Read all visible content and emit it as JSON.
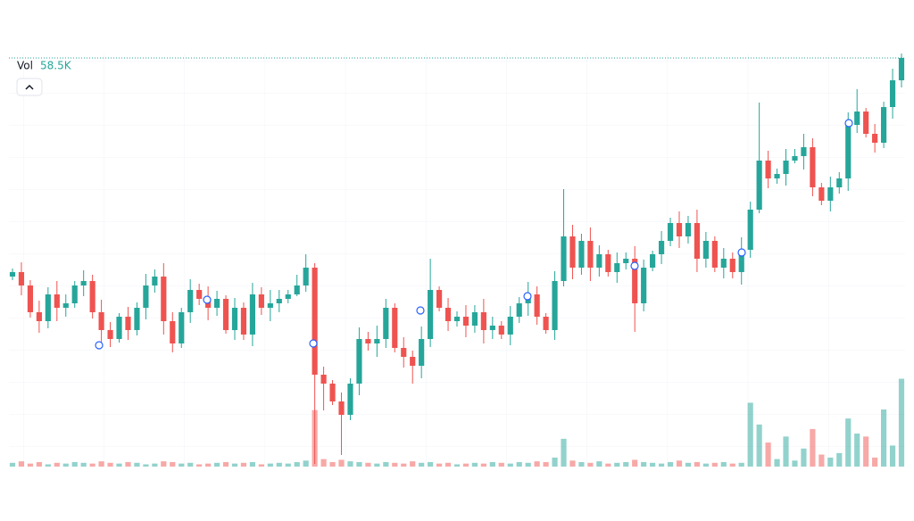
{
  "chart_data": {
    "type": "candlestick",
    "volume_label": "Vol",
    "last_volume_label": "58.5K",
    "up_color": "#26a69a",
    "down_color": "#ef5350",
    "ylim": [
      37,
      500
    ],
    "vol_ylim": [
      0,
      275000
    ],
    "grid": true,
    "candles": [
      [
        250,
        259,
        246,
        255
      ],
      [
        255,
        266,
        229,
        240
      ],
      [
        240,
        246,
        204,
        210
      ],
      [
        210,
        223,
        187,
        200
      ],
      [
        200,
        238,
        192,
        230
      ],
      [
        230,
        245,
        200,
        215
      ],
      [
        215,
        230,
        205,
        220
      ],
      [
        220,
        245,
        215,
        240
      ],
      [
        240,
        257,
        228,
        245
      ],
      [
        245,
        252,
        203,
        210
      ],
      [
        210,
        224,
        176,
        190
      ],
      [
        190,
        199,
        171,
        180
      ],
      [
        180,
        209,
        176,
        205
      ],
      [
        205,
        216,
        179,
        190
      ],
      [
        190,
        221,
        184,
        215
      ],
      [
        215,
        253,
        202,
        240
      ],
      [
        240,
        258,
        232,
        250
      ],
      [
        250,
        265,
        185,
        200
      ],
      [
        200,
        210,
        165,
        175
      ],
      [
        175,
        215,
        170,
        210
      ],
      [
        210,
        247,
        198,
        235
      ],
      [
        235,
        242,
        218,
        225
      ],
      [
        225,
        239,
        201,
        215
      ],
      [
        215,
        234,
        206,
        225
      ],
      [
        225,
        229,
        186,
        190
      ],
      [
        190,
        226,
        179,
        215
      ],
      [
        215,
        221,
        179,
        185
      ],
      [
        185,
        243,
        172,
        230
      ],
      [
        230,
        238,
        207,
        215
      ],
      [
        215,
        235,
        200,
        220
      ],
      [
        220,
        235,
        210,
        225
      ],
      [
        225,
        235,
        220,
        230
      ],
      [
        230,
        252,
        228,
        240
      ],
      [
        240,
        275,
        233,
        260
      ],
      [
        260,
        265,
        40,
        140
      ],
      [
        140,
        149,
        100,
        130
      ],
      [
        130,
        134,
        106,
        110
      ],
      [
        110,
        120,
        50,
        95
      ],
      [
        95,
        136,
        89,
        130
      ],
      [
        130,
        193,
        117,
        180
      ],
      [
        180,
        188,
        167,
        175
      ],
      [
        175,
        195,
        160,
        180
      ],
      [
        180,
        225,
        170,
        215
      ],
      [
        215,
        220,
        165,
        170
      ],
      [
        170,
        182,
        148,
        160
      ],
      [
        160,
        167,
        130,
        150
      ],
      [
        150,
        194,
        136,
        180
      ],
      [
        180,
        270,
        171,
        235
      ],
      [
        235,
        239,
        211,
        215
      ],
      [
        215,
        226,
        189,
        200
      ],
      [
        200,
        211,
        194,
        205
      ],
      [
        205,
        218,
        182,
        195
      ],
      [
        195,
        218,
        187,
        210
      ],
      [
        210,
        225,
        175,
        190
      ],
      [
        190,
        205,
        180,
        195
      ],
      [
        195,
        200,
        180,
        185
      ],
      [
        185,
        217,
        173,
        205
      ],
      [
        205,
        227,
        198,
        220
      ],
      [
        220,
        244,
        206,
        230
      ],
      [
        230,
        239,
        196,
        205
      ],
      [
        205,
        209,
        186,
        190
      ],
      [
        190,
        256,
        179,
        245
      ],
      [
        245,
        348,
        239,
        295
      ],
      [
        295,
        308,
        247,
        260
      ],
      [
        260,
        298,
        252,
        290
      ],
      [
        290,
        305,
        245,
        260
      ],
      [
        260,
        285,
        250,
        275
      ],
      [
        275,
        280,
        250,
        255
      ],
      [
        255,
        277,
        243,
        265
      ],
      [
        265,
        277,
        258,
        270
      ],
      [
        270,
        284,
        188,
        220
      ],
      [
        220,
        269,
        211,
        260
      ],
      [
        260,
        279,
        256,
        275
      ],
      [
        275,
        301,
        264,
        290
      ],
      [
        290,
        316,
        284,
        310
      ],
      [
        310,
        323,
        282,
        295
      ],
      [
        295,
        318,
        287,
        310
      ],
      [
        310,
        325,
        255,
        270
      ],
      [
        270,
        300,
        260,
        290
      ],
      [
        290,
        295,
        255,
        260
      ],
      [
        260,
        282,
        248,
        270
      ],
      [
        270,
        277,
        248,
        255
      ],
      [
        255,
        294,
        241,
        280
      ],
      [
        280,
        334,
        271,
        325
      ],
      [
        325,
        445,
        321,
        380
      ],
      [
        380,
        391,
        349,
        360
      ],
      [
        360,
        371,
        354,
        365
      ],
      [
        365,
        393,
        352,
        380
      ],
      [
        380,
        393,
        377,
        385
      ],
      [
        385,
        410,
        370,
        395
      ],
      [
        395,
        405,
        340,
        350
      ],
      [
        350,
        355,
        330,
        335
      ],
      [
        335,
        362,
        323,
        350
      ],
      [
        350,
        367,
        343,
        360
      ],
      [
        360,
        434,
        346,
        420
      ],
      [
        420,
        460,
        411,
        435
      ],
      [
        435,
        439,
        406,
        410
      ],
      [
        410,
        421,
        389,
        400
      ],
      [
        400,
        446,
        394,
        440
      ],
      [
        440,
        483,
        427,
        470
      ],
      [
        470,
        500,
        462,
        495
      ]
    ],
    "volumes": [
      2500,
      3500,
      2000,
      3000,
      1500,
      2500,
      2000,
      3000,
      2500,
      2000,
      3500,
      2500,
      2000,
      3000,
      2500,
      1500,
      2000,
      3500,
      3000,
      2000,
      2500,
      1500,
      2000,
      2500,
      3000,
      2000,
      2500,
      3000,
      1500,
      2000,
      2500,
      2000,
      3000,
      4000,
      37600,
      5000,
      3000,
      4500,
      3500,
      3000,
      2500,
      2000,
      3000,
      2500,
      2000,
      3500,
      2500,
      3000,
      2000,
      2500,
      1500,
      2000,
      2500,
      2000,
      3000,
      2500,
      2000,
      3000,
      2500,
      3500,
      3000,
      6000,
      18500,
      4000,
      3000,
      2500,
      3500,
      2000,
      2500,
      3000,
      4500,
      3000,
      2500,
      2000,
      3000,
      4000,
      2500,
      3000,
      2000,
      2500,
      3000,
      2000,
      2500,
      42500,
      28000,
      16000,
      5000,
      20000,
      4000,
      12000,
      25000,
      8000,
      6000,
      9000,
      32000,
      22000,
      20000,
      6000,
      38000,
      14000,
      58500
    ]
  }
}
